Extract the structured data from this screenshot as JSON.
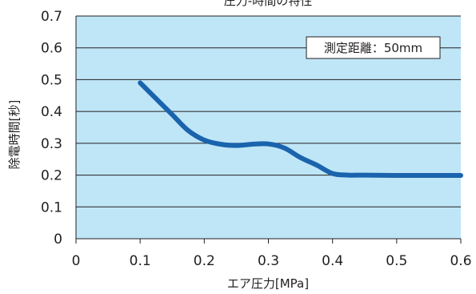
{
  "chart_data": {
    "type": "line",
    "title": "圧力-時間の特性",
    "xlabel": "エア圧力[MPa]",
    "ylabel": "除電時間[秒]",
    "xlim": [
      0,
      0.6
    ],
    "ylim": [
      0,
      0.7
    ],
    "x_ticks": [
      "0",
      "0.1",
      "0.2",
      "0.3",
      "0.4",
      "0.5",
      "0.6"
    ],
    "y_ticks": [
      "0",
      "0.1",
      "0.2",
      "0.3",
      "0.4",
      "0.5",
      "0.6",
      "0.7"
    ],
    "annotation": "測定距離：50mm",
    "grid": true,
    "colors": {
      "plot_background": "#bfe6f7",
      "line": "#1a63ad",
      "grid": "#231f20"
    },
    "series": [
      {
        "x": [
          0.1,
          0.125,
          0.15,
          0.175,
          0.2,
          0.225,
          0.25,
          0.275,
          0.3,
          0.325,
          0.35,
          0.375,
          0.4,
          0.425,
          0.45,
          0.5,
          0.55,
          0.6
        ],
        "y": [
          0.49,
          0.44,
          0.39,
          0.34,
          0.31,
          0.297,
          0.293,
          0.297,
          0.298,
          0.285,
          0.255,
          0.232,
          0.205,
          0.2,
          0.2,
          0.199,
          0.199,
          0.199
        ]
      }
    ]
  }
}
